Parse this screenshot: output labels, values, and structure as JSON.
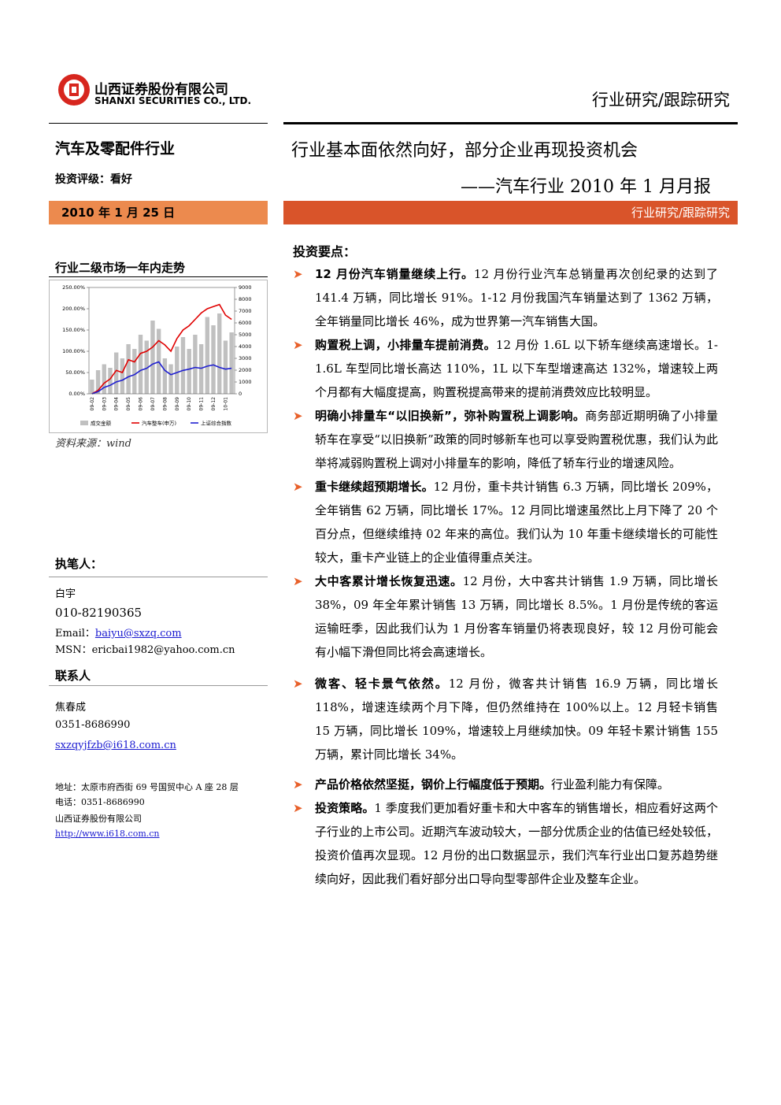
{
  "header": {
    "company_cn": "山西证券股份有限公司",
    "company_en": "SHANXI SECURITIES CO., LTD.",
    "report_type": "行业研究/跟踪研究"
  },
  "sidebar": {
    "industry": "汽车及零配件行业",
    "rating": "投资评级：看好",
    "date": "2010 年 1 月 25 日",
    "chart_title": "行业二级市场一年内走势",
    "source": "资料来源：wind",
    "author_heading": "执笔人：",
    "author": "白宇",
    "author_phone": "010-82190365",
    "author_email_label": "Email：",
    "author_email": "baiyu@sxzq.com",
    "author_msn": "MSN：ericbai1982@yahoo.com.cn",
    "contact_heading": "联系人",
    "contact": "焦春成",
    "contact_phone": "0351-8686990",
    "contact_email": "sxzqyjfzb@i618.com.cn",
    "address": "地址：太原市府西街 69 号国贸中心 A 座 28 层",
    "tel": "电话：0351-8686990",
    "company": "山西证券股份有限公司",
    "url": "http://www.i618.com.cn"
  },
  "main": {
    "title": "行业基本面依然向好，部分企业再现投资机会",
    "subtitle": "——汽车行业 2010 年 1 月月报",
    "banner": "行业研究/跟踪研究",
    "section": "投资要点：",
    "points": [
      {
        "lead": "12 月份汽车销量继续上行。",
        "text": "12 月份行业汽车总销量再次创纪录的达到了 141.4 万辆，同比增长 91%。1-12 月份我国汽车销量达到了 1362 万辆，全年销量同比增长 46%，成为世界第一汽车销售大国。"
      },
      {
        "lead": "购置税上调，小排量车提前消费。",
        "text": "12 月份 1.6L 以下轿车继续高速增长。1-1.6L 车型同比增长高达 110%，1L 以下车型增速高达 132%，增速较上两个月都有大幅度提高，购置税提高带来的提前消费效应比较明显。"
      },
      {
        "lead": "明确小排量车“以旧换新”，弥补购置税上调影响。",
        "text": "商务部近期明确了小排量轿车在享受“以旧换新”政策的同时够新车也可以享受购置税优惠，我们认为此举将减弱购置税上调对小排量车的影响，降低了轿车行业的增速风险。"
      },
      {
        "lead": "重卡继续超预期增长。",
        "text": "12 月份，重卡共计销售 6.3 万辆，同比增长 209%，全年销售 62 万辆，同比增长 17%。12 月同比增速虽然比上月下降了 20 个百分点，但继续维持 02 年来的高位。我们认为 10 年重卡继续增长的可能性较大，重卡产业链上的企业值得重点关注。"
      },
      {
        "lead": "大中客累计增长恢复迅速。",
        "text": "12 月份，大中客共计销售 1.9 万辆，同比增长 38%，09 年全年累计销售 13 万辆，同比增长 8.5%。1 月份是传统的客运运输旺季，因此我们认为 1 月份客车销量仍将表现良好，较 12 月份可能会有小幅下滑但同比将会高速增长。"
      },
      {
        "lead": "微客、轻卡景气依然。",
        "text": "12 月份，微客共计销售 16.9 万辆，同比增长 118%，增速连续两个月下降，但仍然维持在 100%以上。12 月轻卡销售 15 万辆，同比增长 109%，增速较上月继续加快。09 年轻卡累计销售 155 万辆，累计同比增长 34%。"
      },
      {
        "lead": "产品价格依然坚挺，钢价上行幅度低于预期。",
        "text": "行业盈利能力有保障。"
      },
      {
        "lead": "投资策略。",
        "text": "1 季度我们更加看好重卡和大中客车的销售增长，相应看好这两个子行业的上市公司。近期汽车波动较大，一部分优质企业的估值已经处较低，投资价值再次显现。12 月份的出口数据显示，我们汽车行业出口复苏趋势继续向好，因此我们看好部分出口导向型零部件企业及整车企业。"
      }
    ]
  },
  "chart_data": {
    "type": "bar-line",
    "categories": [
      "09-02",
      null,
      "09-03",
      null,
      "09-04",
      null,
      "09-05",
      null,
      "09-06",
      null,
      "09-07",
      null,
      "09-08",
      null,
      "09-09",
      null,
      "09-10",
      null,
      "09-11",
      null,
      "09-12",
      null,
      "10-01",
      null
    ],
    "series": [
      {
        "name": "成交金额",
        "color": "#c0c0c0",
        "axis": "y2",
        "values": [
          1200,
          2000,
          2500,
          2200,
          3500,
          3000,
          4200,
          3800,
          5000,
          4500,
          6200,
          5500,
          3000,
          2500,
          4000,
          4800,
          3800,
          5000,
          4200,
          6500,
          5800,
          6800,
          4500,
          5200
        ]
      },
      {
        "name": "汽车整车(申万)",
        "color": "#e00000",
        "values": [
          0,
          8,
          25,
          35,
          55,
          50,
          80,
          75,
          95,
          100,
          110,
          125,
          115,
          100,
          130,
          150,
          160,
          175,
          190,
          200,
          205,
          210,
          185,
          175
        ]
      },
      {
        "name": "上证综合指数",
        "color": "#1f1fd0",
        "values": [
          0,
          5,
          15,
          20,
          28,
          32,
          40,
          45,
          55,
          60,
          70,
          75,
          55,
          45,
          50,
          55,
          58,
          62,
          60,
          65,
          68,
          62,
          58,
          60
        ]
      }
    ],
    "ylim": [
      0,
      250
    ],
    "yticks": [
      {
        "value": 0,
        "label": "0.00%"
      },
      {
        "value": 50,
        "label": "50.00%"
      },
      {
        "value": 100,
        "label": "100.00%"
      },
      {
        "value": 150,
        "label": "150.00%"
      },
      {
        "value": 200,
        "label": "200.00%"
      },
      {
        "value": 250,
        "label": "250.00%"
      }
    ],
    "y2lim": [
      0,
      9000
    ],
    "y2ticks": [
      0,
      1000,
      2000,
      3000,
      4000,
      5000,
      6000,
      7000,
      8000,
      9000
    ]
  }
}
